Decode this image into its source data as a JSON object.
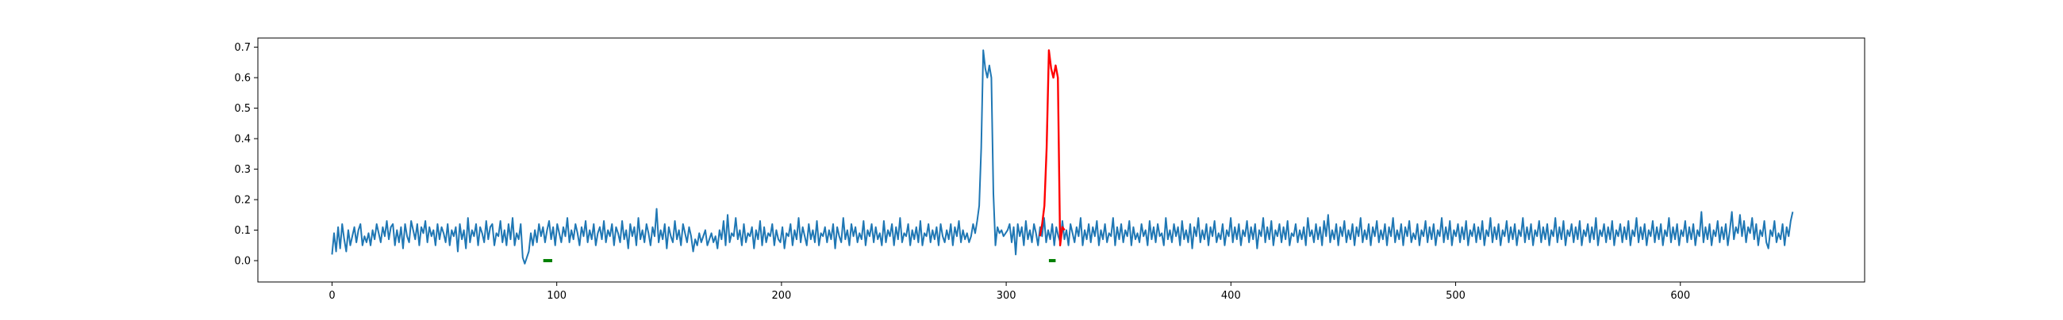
{
  "chart_data": {
    "type": "line",
    "title": "",
    "xlabel": "",
    "ylabel": "",
    "xlim": [
      -33,
      682
    ],
    "ylim": [
      -0.07,
      0.73
    ],
    "x_ticks": [
      0,
      100,
      200,
      300,
      400,
      500,
      600
    ],
    "x_tick_labels": [
      "0",
      "100",
      "200",
      "300",
      "400",
      "500",
      "600"
    ],
    "y_ticks": [
      0.0,
      0.1,
      0.2,
      0.3,
      0.4,
      0.5,
      0.6,
      0.7
    ],
    "y_tick_labels": [
      "0.0",
      "0.1",
      "0.2",
      "0.3",
      "0.4",
      "0.5",
      "0.6",
      "0.7"
    ],
    "grid": false,
    "legend": "none",
    "series": [
      {
        "color": "#1f77b4",
        "x_start": 0,
        "x_end": 650,
        "values": [
          0.02,
          0.09,
          0.03,
          0.11,
          0.04,
          0.12,
          0.07,
          0.03,
          0.1,
          0.05,
          0.08,
          0.11,
          0.06,
          0.1,
          0.12,
          0.05,
          0.08,
          0.06,
          0.09,
          0.05,
          0.1,
          0.07,
          0.12,
          0.09,
          0.06,
          0.11,
          0.08,
          0.13,
          0.07,
          0.11,
          0.12,
          0.05,
          0.1,
          0.06,
          0.11,
          0.04,
          0.12,
          0.08,
          0.06,
          0.13,
          0.1,
          0.07,
          0.12,
          0.05,
          0.11,
          0.09,
          0.13,
          0.06,
          0.11,
          0.08,
          0.1,
          0.05,
          0.12,
          0.07,
          0.11,
          0.09,
          0.06,
          0.12,
          0.05,
          0.1,
          0.08,
          0.11,
          0.03,
          0.12,
          0.07,
          0.1,
          0.04,
          0.14,
          0.06,
          0.1,
          0.08,
          0.12,
          0.05,
          0.11,
          0.09,
          0.06,
          0.13,
          0.07,
          0.11,
          0.12,
          0.05,
          0.09,
          0.08,
          0.13,
          0.06,
          0.1,
          0.05,
          0.12,
          0.07,
          0.14,
          0.05,
          0.09,
          0.07,
          0.12,
          0.01,
          -0.01,
          0.01,
          0.03,
          0.09,
          0.05,
          0.1,
          0.06,
          0.12,
          0.08,
          0.11,
          0.06,
          0.1,
          0.13,
          0.07,
          0.11,
          0.05,
          0.12,
          0.09,
          0.06,
          0.11,
          0.08,
          0.14,
          0.06,
          0.1,
          0.07,
          0.12,
          0.09,
          0.05,
          0.11,
          0.08,
          0.13,
          0.06,
          0.1,
          0.07,
          0.12,
          0.05,
          0.09,
          0.11,
          0.07,
          0.13,
          0.06,
          0.1,
          0.08,
          0.12,
          0.05,
          0.11,
          0.09,
          0.06,
          0.13,
          0.07,
          0.1,
          0.04,
          0.12,
          0.08,
          0.11,
          0.05,
          0.14,
          0.07,
          0.1,
          0.06,
          0.12,
          0.09,
          0.05,
          0.11,
          0.08,
          0.17,
          0.06,
          0.1,
          0.07,
          0.12,
          0.04,
          0.11,
          0.08,
          0.06,
          0.13,
          0.07,
          0.1,
          0.05,
          0.12,
          0.09,
          0.06,
          0.11,
          0.08,
          0.03,
          0.07,
          0.05,
          0.09,
          0.06,
          0.08,
          0.1,
          0.05,
          0.07,
          0.09,
          0.06,
          0.08,
          0.04,
          0.1,
          0.07,
          0.13,
          0.05,
          0.15,
          0.06,
          0.09,
          0.08,
          0.14,
          0.07,
          0.1,
          0.05,
          0.12,
          0.06,
          0.09,
          0.08,
          0.11,
          0.04,
          0.1,
          0.07,
          0.13,
          0.05,
          0.11,
          0.06,
          0.09,
          0.08,
          0.12,
          0.05,
          0.1,
          0.07,
          0.06,
          0.11,
          0.04,
          0.09,
          0.08,
          0.12,
          0.05,
          0.1,
          0.07,
          0.14,
          0.06,
          0.11,
          0.08,
          0.05,
          0.12,
          0.07,
          0.1,
          0.06,
          0.13,
          0.05,
          0.09,
          0.08,
          0.11,
          0.06,
          0.1,
          0.07,
          0.12,
          0.04,
          0.11,
          0.08,
          0.06,
          0.14,
          0.07,
          0.1,
          0.05,
          0.12,
          0.08,
          0.11,
          0.06,
          0.09,
          0.07,
          0.13,
          0.05,
          0.1,
          0.08,
          0.12,
          0.06,
          0.11,
          0.07,
          0.09,
          0.05,
          0.13,
          0.06,
          0.1,
          0.08,
          0.12,
          0.05,
          0.11,
          0.07,
          0.14,
          0.06,
          0.09,
          0.08,
          0.12,
          0.05,
          0.1,
          0.07,
          0.11,
          0.06,
          0.13,
          0.05,
          0.09,
          0.08,
          0.12,
          0.06,
          0.1,
          0.07,
          0.11,
          0.05,
          0.12,
          0.08,
          0.06,
          0.1,
          0.07,
          0.12,
          0.05,
          0.11,
          0.08,
          0.13,
          0.06,
          0.1,
          0.07,
          0.09,
          0.06,
          0.08,
          0.12,
          0.09,
          0.13,
          0.18,
          0.37,
          0.69,
          0.63,
          0.6,
          0.64,
          0.6,
          0.22,
          0.05,
          0.11,
          0.09,
          0.1,
          0.08,
          0.09,
          0.1,
          0.12,
          0.06,
          0.11,
          0.02,
          0.12,
          0.08,
          0.11,
          0.05,
          0.13,
          0.07,
          0.1,
          0.06,
          0.12,
          0.09,
          0.05,
          0.11,
          0.08,
          0.14,
          0.06,
          0.1,
          0.07,
          0.12,
          0.05,
          0.11,
          0.08,
          0.06,
          0.13,
          0.07,
          0.1,
          0.05,
          0.12,
          0.09,
          0.06,
          0.11,
          0.08,
          0.14,
          0.05,
          0.1,
          0.07,
          0.12,
          0.06,
          0.11,
          0.08,
          0.13,
          0.05,
          0.1,
          0.07,
          0.12,
          0.06,
          0.09,
          0.08,
          0.14,
          0.05,
          0.11,
          0.07,
          0.12,
          0.06,
          0.1,
          0.08,
          0.13,
          0.05,
          0.11,
          0.07,
          0.09,
          0.06,
          0.12,
          0.08,
          0.1,
          0.05,
          0.13,
          0.07,
          0.11,
          0.06,
          0.12,
          0.08,
          0.09,
          0.05,
          0.14,
          0.07,
          0.1,
          0.06,
          0.12,
          0.08,
          0.11,
          0.05,
          0.13,
          0.07,
          0.1,
          0.06,
          0.12,
          0.04,
          0.11,
          0.08,
          0.14,
          0.06,
          0.1,
          0.07,
          0.12,
          0.05,
          0.11,
          0.08,
          0.13,
          0.06,
          0.09,
          0.07,
          0.12,
          0.05,
          0.1,
          0.08,
          0.14,
          0.06,
          0.11,
          0.07,
          0.12,
          0.05,
          0.1,
          0.08,
          0.13,
          0.06,
          0.11,
          0.07,
          0.12,
          0.04,
          0.1,
          0.08,
          0.14,
          0.06,
          0.11,
          0.07,
          0.13,
          0.05,
          0.1,
          0.08,
          0.12,
          0.06,
          0.11,
          0.07,
          0.13,
          0.05,
          0.09,
          0.08,
          0.12,
          0.06,
          0.1,
          0.07,
          0.11,
          0.05,
          0.14,
          0.08,
          0.1,
          0.06,
          0.12,
          0.07,
          0.11,
          0.05,
          0.13,
          0.08,
          0.15,
          0.06,
          0.1,
          0.07,
          0.12,
          0.05,
          0.11,
          0.08,
          0.13,
          0.06,
          0.1,
          0.07,
          0.12,
          0.05,
          0.11,
          0.08,
          0.14,
          0.06,
          0.1,
          0.07,
          0.12,
          0.05,
          0.11,
          0.08,
          0.13,
          0.06,
          0.1,
          0.07,
          0.12,
          0.05,
          0.11,
          0.08,
          0.14,
          0.06,
          0.1,
          0.07,
          0.12,
          0.05,
          0.11,
          0.08,
          0.13,
          0.06,
          0.09,
          0.07,
          0.12,
          0.05,
          0.1,
          0.08,
          0.13,
          0.06,
          0.11,
          0.07,
          0.12,
          0.05,
          0.1,
          0.08,
          0.14,
          0.06,
          0.11,
          0.07,
          0.13,
          0.05,
          0.1,
          0.08,
          0.12,
          0.06,
          0.11,
          0.07,
          0.13,
          0.05,
          0.1,
          0.08,
          0.12,
          0.06,
          0.11,
          0.07,
          0.13,
          0.05,
          0.1,
          0.08,
          0.14,
          0.06,
          0.11,
          0.07,
          0.12,
          0.05,
          0.1,
          0.08,
          0.13,
          0.06,
          0.11,
          0.07,
          0.12,
          0.05,
          0.1,
          0.08,
          0.14,
          0.06,
          0.11,
          0.07,
          0.12,
          0.05,
          0.1,
          0.08,
          0.13,
          0.06,
          0.11,
          0.07,
          0.12,
          0.05,
          0.1,
          0.08,
          0.14,
          0.06,
          0.11,
          0.07,
          0.13,
          0.05,
          0.1,
          0.08,
          0.12,
          0.06,
          0.11,
          0.07,
          0.13,
          0.05,
          0.1,
          0.08,
          0.12,
          0.06,
          0.11,
          0.07,
          0.14,
          0.05,
          0.1,
          0.08,
          0.12,
          0.06,
          0.11,
          0.07,
          0.13,
          0.05,
          0.1,
          0.08,
          0.12,
          0.06,
          0.11,
          0.07,
          0.13,
          0.05,
          0.1,
          0.08,
          0.14,
          0.06,
          0.11,
          0.07,
          0.12,
          0.05,
          0.1,
          0.08,
          0.13,
          0.06,
          0.11,
          0.07,
          0.12,
          0.05,
          0.1,
          0.08,
          0.14,
          0.06,
          0.11,
          0.07,
          0.12,
          0.05,
          0.1,
          0.08,
          0.13,
          0.06,
          0.11,
          0.07,
          0.12,
          0.05,
          0.1,
          0.08,
          0.16,
          0.06,
          0.11,
          0.07,
          0.12,
          0.05,
          0.1,
          0.08,
          0.13,
          0.06,
          0.11,
          0.07,
          0.12,
          0.05,
          0.1,
          0.16,
          0.07,
          0.11,
          0.09,
          0.15,
          0.08,
          0.13,
          0.06,
          0.11,
          0.09,
          0.14,
          0.07,
          0.12,
          0.05,
          0.1,
          0.08,
          0.13,
          0.06,
          0.04,
          0.1,
          0.08,
          0.13,
          0.06,
          0.09,
          0.07,
          0.12,
          0.05,
          0.11,
          0.08,
          0.13,
          0.16
        ]
      },
      {
        "color": "#ff0000",
        "x": [
          315,
          316,
          317,
          318,
          319,
          320,
          321,
          322,
          323,
          324,
          325,
          326
        ],
        "values": [
          0.08,
          0.12,
          0.18,
          0.37,
          0.69,
          0.63,
          0.6,
          0.64,
          0.6,
          0.05,
          0.11,
          0.1
        ]
      }
    ],
    "markers": [
      {
        "color": "#008000",
        "x": [
          94,
          98
        ],
        "y": 0.0
      },
      {
        "color": "#008000",
        "x": [
          319,
          322
        ],
        "y": 0.0
      }
    ]
  }
}
